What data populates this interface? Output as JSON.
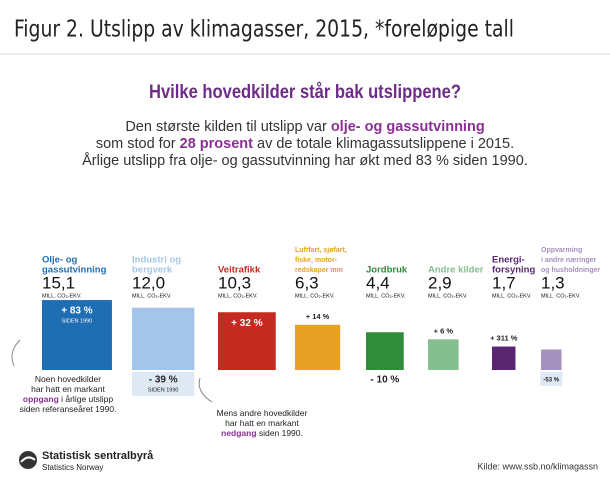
{
  "header": {
    "title": "Figur 2. Utslipp av klimagasser, 2015, *foreløpige tall"
  },
  "heading": {
    "text": "Hvilke hovedkilder står bak utslippene?",
    "color": "#6d2d84"
  },
  "intro": [
    [
      "Den største kilden til utslipp var ",
      {
        "text": "olje- og gassutvinning",
        "color": "#8b2f96"
      }
    ],
    [
      "som stod for ",
      {
        "text": "28 prosent",
        "color": "#8b2f96"
      },
      " av de totale klimagassutslippene i 2015."
    ],
    [
      "Årlige utslipp fra olje- og gassutvinning har økt med 83 % siden 1990."
    ]
  ],
  "sources": [
    {
      "name": [
        "Olje- og",
        "gassutvinning"
      ],
      "color": "#1f6db3",
      "value": 15.1,
      "value_label": "15,1",
      "unit": "MILL. CO₂-EKV.",
      "change": 83,
      "change_label": "+ 83 %",
      "change_note": "SIDEN 1990"
    },
    {
      "name": [
        "Industri og",
        "bergverk"
      ],
      "color": "#a3c6e8",
      "value": 12.0,
      "value_label": "12,0",
      "unit": "MILL. CO₂-EKV.",
      "change": -39,
      "change_label": "- 39 %",
      "change_note": "SIDEN 1990"
    },
    {
      "name": [
        "Veitrafikk"
      ],
      "color": "#c42a1f",
      "value": 10.3,
      "value_label": "10,3",
      "unit": "MILL. CO₂-EKV.",
      "change": 32,
      "change_label": "+ 32 %"
    },
    {
      "name": [
        "Luftfart, sjøfart,",
        "fiske, motor-",
        "redskaper mm"
      ],
      "color": "#e8a124",
      "value": 6.3,
      "value_label": "6,3",
      "unit": "MILL. CO₂-EKV.",
      "change": 14,
      "change_label": "+ 14 %"
    },
    {
      "name": [
        "Jordbruk"
      ],
      "color": "#2f8c3a",
      "value": 4.4,
      "value_label": "4,4",
      "unit": "MILL. CO₂-EKV.",
      "change": -10,
      "change_label": "- 10 %"
    },
    {
      "name": [
        "Andre kilder"
      ],
      "color": "#86bf8f",
      "value": 2.9,
      "value_label": "2,9",
      "unit": "MILL. CO₂-EKV.",
      "change": 6,
      "change_label": "+ 6 %"
    },
    {
      "name": [
        "Energi-",
        "forsyning"
      ],
      "color": "#5a2670",
      "value": 1.7,
      "value_label": "1,7",
      "unit": "MILL. CO₂-EKV.",
      "change": 311,
      "change_label": "+ 311 %"
    },
    {
      "name": [
        "Oppvarming",
        "i andre næringer",
        "og husholdninger"
      ],
      "color": "#a591c0",
      "value": 1.3,
      "value_label": "1,3",
      "unit": "MILL. CO₂-EKV.",
      "change": -53,
      "change_label": "-53 %"
    }
  ],
  "notes": [
    [
      [
        "Noen hovedkilder"
      ],
      [
        "har hatt en markant"
      ],
      [
        {
          "text": "oppgang",
          "color": "#8b2f96"
        },
        " i årlige utslipp"
      ],
      [
        "siden referanseåret 1990."
      ]
    ],
    [
      [
        "Mens andre hovedkilder"
      ],
      [
        "har hatt en markant"
      ],
      [
        {
          "text": "nedgang",
          "color": "#8b2f96"
        },
        " siden 1990."
      ]
    ]
  ],
  "footer": {
    "logo": "Statistisk sentralbyrå",
    "logo_sub": "Statistics Norway",
    "source": "Kilde: www.ssb.no/klimagassn"
  }
}
